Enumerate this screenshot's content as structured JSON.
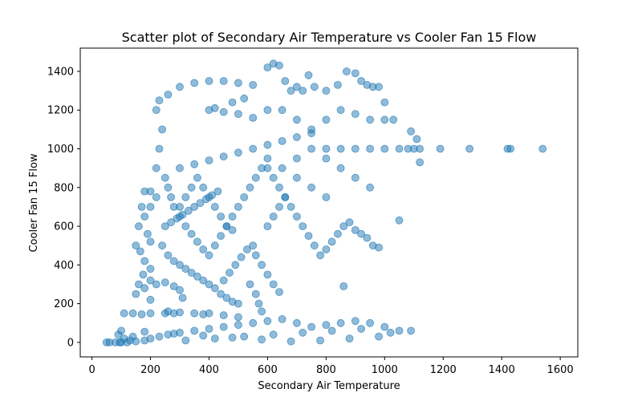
{
  "chart_data": {
    "type": "scatter",
    "title": "Scatter plot of Secondary Air Temperature vs Cooler Fan 15 Flow",
    "xlabel": "Secondary Air Temperature",
    "ylabel": "Cooler Fan 15 Flow",
    "xlim": [
      -40,
      1660
    ],
    "ylim": [
      -75,
      1520
    ],
    "xticks": [
      0,
      200,
      400,
      600,
      800,
      1000,
      1200,
      1400,
      1600
    ],
    "yticks": [
      0,
      200,
      400,
      600,
      800,
      1000,
      1200,
      1400
    ],
    "grid": false,
    "marker_color": "#1f77b4",
    "marker_alpha": 0.5,
    "series": [
      {
        "points": [
          [
            50,
            0
          ],
          [
            60,
            0
          ],
          [
            80,
            0
          ],
          [
            100,
            0
          ],
          [
            120,
            0
          ],
          [
            150,
            5
          ],
          [
            180,
            10
          ],
          [
            200,
            20
          ],
          [
            230,
            30
          ],
          [
            260,
            40
          ],
          [
            300,
            50
          ],
          [
            350,
            60
          ],
          [
            400,
            70
          ],
          [
            450,
            80
          ],
          [
            500,
            90
          ],
          [
            550,
            100
          ],
          [
            600,
            110
          ],
          [
            650,
            120
          ],
          [
            700,
            100
          ],
          [
            750,
            80
          ],
          [
            800,
            90
          ],
          [
            850,
            100
          ],
          [
            900,
            110
          ],
          [
            950,
            100
          ],
          [
            1000,
            80
          ],
          [
            1050,
            60
          ],
          [
            1090,
            60
          ],
          [
            980,
            30
          ],
          [
            880,
            20
          ],
          [
            780,
            10
          ],
          [
            680,
            5
          ],
          [
            580,
            15
          ],
          [
            480,
            25
          ],
          [
            380,
            35
          ],
          [
            280,
            45
          ],
          [
            180,
            55
          ],
          [
            100,
            60
          ],
          [
            90,
            40
          ],
          [
            110,
            20
          ],
          [
            130,
            10
          ],
          [
            95,
            0
          ],
          [
            140,
            30
          ],
          [
            320,
            10
          ],
          [
            420,
            20
          ],
          [
            520,
            30
          ],
          [
            620,
            40
          ],
          [
            720,
            50
          ],
          [
            820,
            60
          ],
          [
            920,
            70
          ],
          [
            1020,
            50
          ],
          [
            110,
            150
          ],
          [
            140,
            150
          ],
          [
            170,
            145
          ],
          [
            200,
            150
          ],
          [
            250,
            150
          ],
          [
            300,
            155
          ],
          [
            350,
            150
          ],
          [
            400,
            150
          ],
          [
            450,
            140
          ],
          [
            500,
            130
          ],
          [
            260,
            160
          ],
          [
            280,
            150
          ],
          [
            380,
            145
          ],
          [
            150,
            250
          ],
          [
            160,
            300
          ],
          [
            180,
            280
          ],
          [
            200,
            320
          ],
          [
            220,
            300
          ],
          [
            250,
            310
          ],
          [
            280,
            290
          ],
          [
            300,
            270
          ],
          [
            310,
            230
          ],
          [
            200,
            220
          ],
          [
            150,
            500
          ],
          [
            160,
            600
          ],
          [
            170,
            700
          ],
          [
            180,
            780
          ],
          [
            200,
            780
          ],
          [
            220,
            750
          ],
          [
            200,
            700
          ],
          [
            180,
            650
          ],
          [
            190,
            560
          ],
          [
            200,
            520
          ],
          [
            180,
            420
          ],
          [
            200,
            380
          ],
          [
            175,
            350
          ],
          [
            165,
            470
          ],
          [
            220,
            900
          ],
          [
            230,
            1000
          ],
          [
            240,
            1100
          ],
          [
            220,
            1200
          ],
          [
            230,
            1250
          ],
          [
            260,
            1280
          ],
          [
            300,
            1320
          ],
          [
            350,
            1340
          ],
          [
            400,
            1350
          ],
          [
            450,
            1350
          ],
          [
            500,
            1340
          ],
          [
            550,
            1330
          ],
          [
            600,
            1420
          ],
          [
            620,
            1440
          ],
          [
            640,
            1430
          ],
          [
            660,
            1350
          ],
          [
            680,
            1300
          ],
          [
            700,
            1320
          ],
          [
            720,
            1300
          ],
          [
            740,
            1380
          ],
          [
            760,
            1320
          ],
          [
            800,
            1300
          ],
          [
            840,
            1330
          ],
          [
            870,
            1400
          ],
          [
            900,
            1390
          ],
          [
            920,
            1350
          ],
          [
            940,
            1330
          ],
          [
            960,
            1320
          ],
          [
            980,
            1320
          ],
          [
            1000,
            1240
          ],
          [
            250,
            850
          ],
          [
            260,
            800
          ],
          [
            270,
            750
          ],
          [
            280,
            700
          ],
          [
            300,
            650
          ],
          [
            320,
            600
          ],
          [
            340,
            560
          ],
          [
            360,
            520
          ],
          [
            380,
            480
          ],
          [
            400,
            450
          ],
          [
            420,
            500
          ],
          [
            440,
            550
          ],
          [
            460,
            600
          ],
          [
            480,
            650
          ],
          [
            500,
            700
          ],
          [
            520,
            750
          ],
          [
            540,
            800
          ],
          [
            560,
            850
          ],
          [
            580,
            900
          ],
          [
            600,
            950
          ],
          [
            300,
            900
          ],
          [
            350,
            920
          ],
          [
            400,
            940
          ],
          [
            450,
            960
          ],
          [
            500,
            980
          ],
          [
            550,
            1000
          ],
          [
            600,
            1020
          ],
          [
            650,
            1040
          ],
          [
            700,
            1060
          ],
          [
            750,
            1080
          ],
          [
            800,
            1000
          ],
          [
            850,
            1000
          ],
          [
            900,
            1000
          ],
          [
            950,
            1000
          ],
          [
            1000,
            1000
          ],
          [
            1050,
            1000
          ],
          [
            1080,
            1000
          ],
          [
            1100,
            1000
          ],
          [
            1120,
            1000
          ],
          [
            1190,
            1000
          ],
          [
            1290,
            1000
          ],
          [
            1420,
            1000
          ],
          [
            1430,
            1000
          ],
          [
            1540,
            1000
          ],
          [
            1120,
            930
          ],
          [
            1110,
            1050
          ],
          [
            1090,
            1090
          ],
          [
            1050,
            630
          ],
          [
            860,
            290
          ],
          [
            600,
            1200
          ],
          [
            650,
            1200
          ],
          [
            700,
            1150
          ],
          [
            750,
            1100
          ],
          [
            800,
            1150
          ],
          [
            850,
            1200
          ],
          [
            900,
            1180
          ],
          [
            950,
            1150
          ],
          [
            1000,
            1150
          ],
          [
            1030,
            1150
          ],
          [
            400,
            1200
          ],
          [
            420,
            1210
          ],
          [
            450,
            1190
          ],
          [
            500,
            1180
          ],
          [
            550,
            1160
          ],
          [
            480,
            1240
          ],
          [
            520,
            1260
          ],
          [
            600,
            900
          ],
          [
            620,
            850
          ],
          [
            640,
            800
          ],
          [
            660,
            750
          ],
          [
            680,
            700
          ],
          [
            700,
            650
          ],
          [
            720,
            600
          ],
          [
            740,
            550
          ],
          [
            760,
            500
          ],
          [
            780,
            450
          ],
          [
            800,
            480
          ],
          [
            820,
            520
          ],
          [
            840,
            560
          ],
          [
            860,
            600
          ],
          [
            880,
            620
          ],
          [
            900,
            580
          ],
          [
            920,
            560
          ],
          [
            940,
            540
          ],
          [
            960,
            500
          ],
          [
            980,
            490
          ],
          [
            650,
            900
          ],
          [
            700,
            950
          ],
          [
            750,
            1000
          ],
          [
            800,
            950
          ],
          [
            850,
            900
          ],
          [
            900,
            850
          ],
          [
            950,
            800
          ],
          [
            700,
            850
          ],
          [
            750,
            800
          ],
          [
            800,
            750
          ],
          [
            600,
            600
          ],
          [
            620,
            650
          ],
          [
            640,
            700
          ],
          [
            660,
            750
          ],
          [
            550,
            500
          ],
          [
            560,
            450
          ],
          [
            580,
            400
          ],
          [
            600,
            350
          ],
          [
            620,
            300
          ],
          [
            640,
            260
          ],
          [
            540,
            300
          ],
          [
            560,
            250
          ],
          [
            570,
            200
          ],
          [
            580,
            160
          ],
          [
            300,
            700
          ],
          [
            320,
            750
          ],
          [
            340,
            800
          ],
          [
            360,
            850
          ],
          [
            380,
            800
          ],
          [
            400,
            750
          ],
          [
            420,
            700
          ],
          [
            440,
            650
          ],
          [
            460,
            600
          ],
          [
            480,
            580
          ],
          [
            250,
            600
          ],
          [
            270,
            620
          ],
          [
            290,
            640
          ],
          [
            310,
            660
          ],
          [
            330,
            680
          ],
          [
            350,
            700
          ],
          [
            370,
            720
          ],
          [
            390,
            740
          ],
          [
            410,
            760
          ],
          [
            430,
            780
          ],
          [
            240,
            500
          ],
          [
            260,
            450
          ],
          [
            280,
            420
          ],
          [
            300,
            400
          ],
          [
            320,
            380
          ],
          [
            340,
            360
          ],
          [
            360,
            340
          ],
          [
            380,
            320
          ],
          [
            400,
            300
          ],
          [
            420,
            280
          ],
          [
            450,
            320
          ],
          [
            470,
            360
          ],
          [
            490,
            400
          ],
          [
            510,
            440
          ],
          [
            530,
            480
          ],
          [
            440,
            250
          ],
          [
            460,
            230
          ],
          [
            480,
            210
          ],
          [
            500,
            200
          ]
        ]
      }
    ]
  }
}
